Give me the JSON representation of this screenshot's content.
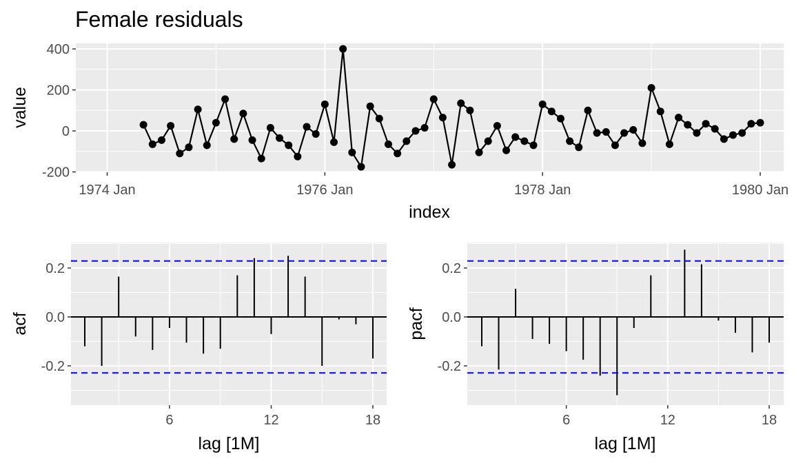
{
  "title": "Female residuals",
  "chart_data": [
    {
      "type": "line",
      "title": "Female residuals",
      "xlabel": "index",
      "ylabel": "value",
      "x_ticks": [
        "1974 Jan",
        "1976 Jan",
        "1978 Jan",
        "1980 Jan"
      ],
      "y_ticks": [
        "400",
        "200",
        "0",
        "-200"
      ],
      "x_range": [
        "1974 Jan",
        "1980 Jan"
      ],
      "ylim": [
        -200,
        400
      ],
      "x_start": "1974 May",
      "x_end": "1979 Dec",
      "frequency": "monthly",
      "values": [
        30,
        -65,
        -45,
        25,
        -110,
        -80,
        105,
        -70,
        40,
        155,
        -40,
        85,
        -45,
        -135,
        15,
        -35,
        -70,
        -125,
        20,
        -15,
        130,
        -55,
        400,
        -105,
        -175,
        120,
        60,
        -65,
        -110,
        -50,
        0,
        15,
        155,
        65,
        -165,
        135,
        100,
        -105,
        -50,
        25,
        -95,
        -30,
        -50,
        -70,
        130,
        95,
        60,
        -50,
        -80,
        100,
        -10,
        -5,
        -70,
        -10,
        5,
        -60,
        210,
        95,
        -65,
        65,
        30,
        -10,
        35,
        10,
        -40,
        -20,
        -10,
        35,
        40
      ],
      "grid": true,
      "point_color": "#000000",
      "line_color": "#000000"
    },
    {
      "type": "bar",
      "title": "",
      "xlabel": "lag [1M]",
      "ylabel": "acf",
      "lags": [
        1,
        2,
        3,
        4,
        5,
        6,
        7,
        8,
        9,
        10,
        11,
        12,
        13,
        14,
        15,
        16,
        17,
        18
      ],
      "values": [
        -0.12,
        -0.2,
        0.165,
        -0.08,
        -0.135,
        -0.045,
        -0.105,
        -0.15,
        -0.13,
        0.17,
        0.24,
        -0.07,
        0.25,
        0.165,
        -0.2,
        -0.01,
        -0.03,
        -0.17
      ],
      "x_ticks": [
        "6",
        "12",
        "18"
      ],
      "y_ticks": [
        "0.2",
        "0.0",
        "-0.2"
      ],
      "ylim": [
        -0.35,
        0.3
      ],
      "confidence_bound": 0.229,
      "bound_color": "#0000ff"
    },
    {
      "type": "bar",
      "title": "",
      "xlabel": "lag [1M]",
      "ylabel": "pacf",
      "lags": [
        1,
        2,
        3,
        4,
        5,
        6,
        7,
        8,
        9,
        10,
        11,
        12,
        13,
        14,
        15,
        16,
        17,
        18
      ],
      "values": [
        -0.12,
        -0.215,
        0.115,
        -0.09,
        -0.11,
        -0.14,
        -0.175,
        -0.24,
        -0.32,
        -0.045,
        0.17,
        0.0,
        0.275,
        0.215,
        -0.015,
        -0.065,
        -0.145,
        -0.105
      ],
      "x_ticks": [
        "6",
        "12",
        "18"
      ],
      "y_ticks": [
        "0.2",
        "0.0",
        "-0.2"
      ],
      "ylim": [
        -0.35,
        0.3
      ],
      "confidence_bound": 0.229,
      "bound_color": "#0000ff"
    }
  ]
}
